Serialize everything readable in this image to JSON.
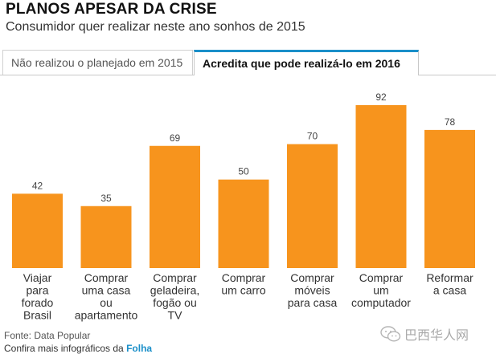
{
  "header": {
    "title": "PLANOS APESAR DA CRISE",
    "subtitle": "Consumidor quer realizar neste ano sonhos de 2015"
  },
  "tabs": [
    {
      "label": "Não realizou o planejado em 2015",
      "active": false
    },
    {
      "label": "Acredita que pode realizá-lo em 2016",
      "active": true
    }
  ],
  "chart_data": {
    "type": "bar",
    "categories": [
      [
        "Viajar",
        "para",
        "forado",
        "Brasil"
      ],
      [
        "Comprar",
        "uma casa",
        "ou",
        "apartamento"
      ],
      [
        "Comprar",
        "geladeira,",
        "fogão ou",
        "TV"
      ],
      [
        "Comprar",
        "um carro"
      ],
      [
        "Comprar",
        "móveis",
        "para casa"
      ],
      [
        "Comprar",
        "um",
        "computador"
      ],
      [
        "Reformar",
        "a casa"
      ]
    ],
    "values": [
      42,
      35,
      69,
      50,
      70,
      92,
      78
    ],
    "bar_color": "#f7941d",
    "ylim": [
      0,
      92
    ],
    "grid": false,
    "legend": "none"
  },
  "footer": {
    "source": "Fonte: Data Popular",
    "more_prefix": "Confira mais infográficos da ",
    "more_link": "Folha"
  },
  "watermark": {
    "text": "巴西华人网",
    "icon": "wechat-icon"
  },
  "colors": {
    "accent": "#1a8fc9",
    "bar": "#f7941d"
  }
}
